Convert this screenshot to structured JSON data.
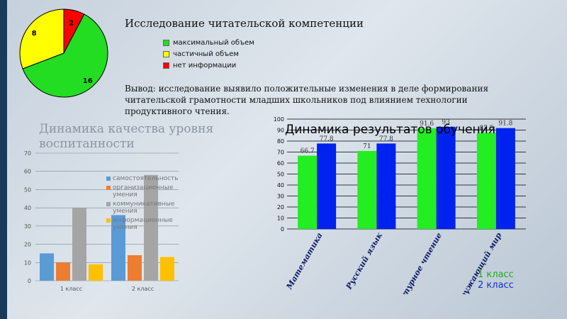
{
  "research": {
    "title": "Исследование читательской компетенции",
    "conclusion": "Вывод: исследование выявило положительные изменения в деле формирования читательской грамотности младших школьников под влиянием технологии продуктивного чтения."
  },
  "quality": {
    "title": "Динамика качества уровня воспитанности"
  },
  "chart_data": [
    {
      "type": "pie",
      "slices": [
        {
          "label": "максимальный объем",
          "value": 16,
          "color": "#22dd22"
        },
        {
          "label": "частичный объем",
          "value": 8,
          "color": "#ffff00"
        },
        {
          "label": "нет информации",
          "value": 2,
          "color": "#ff0000"
        }
      ],
      "legend_position": "right"
    },
    {
      "type": "bar",
      "title": "Динамика качества уровня воспитанности",
      "categories": [
        "1 класс",
        "2 класс"
      ],
      "series": [
        {
          "name": "самостоятельность",
          "values": [
            15,
            36
          ],
          "color": "#5b9bd5"
        },
        {
          "name": "организационные умения",
          "values": [
            10,
            14
          ],
          "color": "#ed7d31"
        },
        {
          "name": "коммуникативные умения",
          "values": [
            40,
            58
          ],
          "color": "#a5a5a5"
        },
        {
          "name": "информационные умения",
          "values": [
            9,
            13
          ],
          "color": "#ffc000"
        }
      ],
      "ylim": [
        0,
        70
      ],
      "yticks": [
        0,
        10,
        20,
        30,
        40,
        50,
        60,
        70
      ],
      "grid": true,
      "legend_position": "right"
    },
    {
      "type": "bar",
      "title": "Динамика результатов обучения",
      "categories": [
        "Математика",
        "Русский язык",
        "Литературное чтение",
        "Окружающий мир"
      ],
      "series": [
        {
          "name": "1 класс",
          "values": [
            66.7,
            71,
            91.6,
            87.5
          ],
          "color": "#22ee22"
        },
        {
          "name": "2 класс",
          "values": [
            77.8,
            77.8,
            93,
            91.8
          ],
          "color": "#0022ee"
        }
      ],
      "value_labels": [
        [
          "66.7",
          "71",
          "91.6",
          "87.5"
        ],
        [
          "77.8",
          "77.8",
          "93",
          "91.8"
        ]
      ],
      "ylim": [
        0,
        100
      ],
      "yticks": [
        0,
        10,
        20,
        30,
        40,
        50,
        60,
        70,
        80,
        90,
        100
      ],
      "grid": true,
      "legend_position": "bottom-right"
    }
  ]
}
